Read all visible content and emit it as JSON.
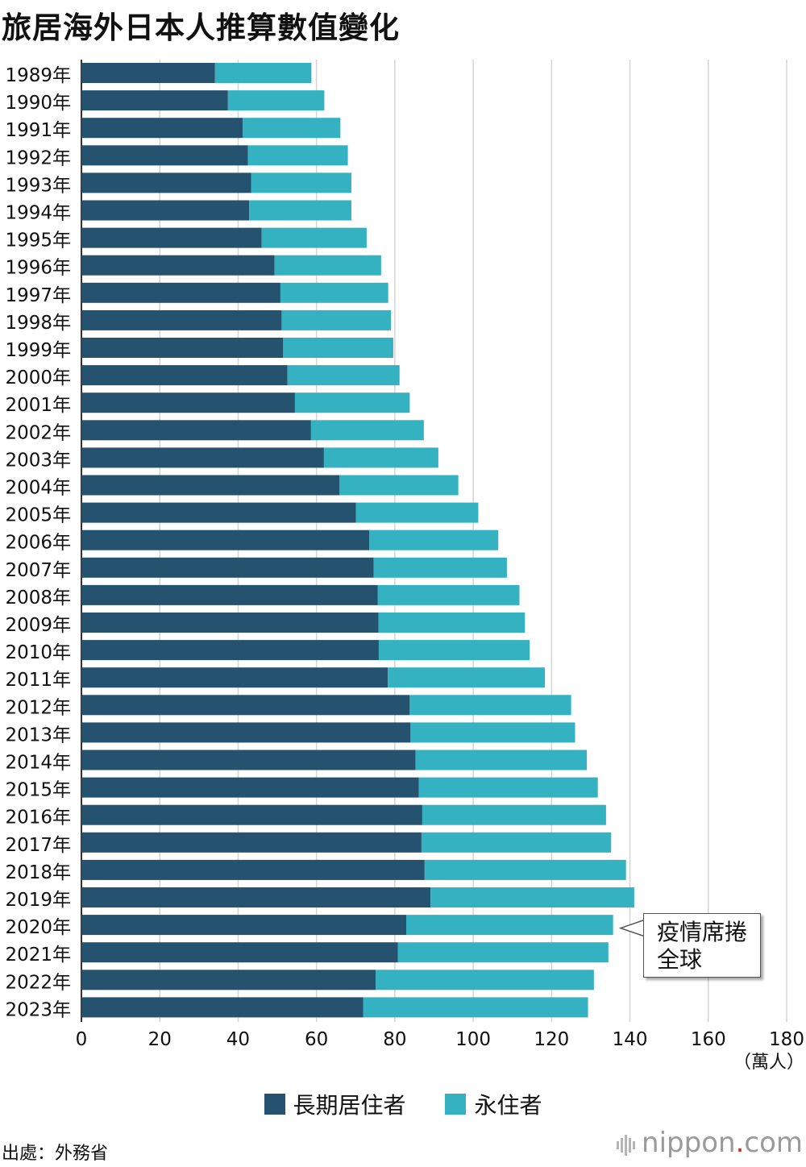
{
  "title": "旅居海外日本人推算數值變化",
  "source": "出處：外務省",
  "brand": {
    "name": "nippon",
    "dot": ".",
    "suffix": "com"
  },
  "annotation": {
    "line1": "疫情席捲",
    "line2": "全球",
    "year": "2020年"
  },
  "colors": {
    "long_term": "#25526f",
    "permanent": "#35b2c1",
    "grid": "#d4d4d4",
    "axis": "#333333"
  },
  "chart_data": {
    "type": "bar",
    "orientation": "horizontal",
    "stacked": true,
    "title": "旅居海外日本人推算數值變化",
    "unit": "（萬人）",
    "xlim": [
      0,
      180
    ],
    "xticks": [
      0,
      20,
      40,
      60,
      80,
      100,
      120,
      140,
      160,
      180
    ],
    "grid": true,
    "legend_position": "bottom",
    "categories": [
      "1989年",
      "1990年",
      "1991年",
      "1992年",
      "1993年",
      "1994年",
      "1995年",
      "1996年",
      "1997年",
      "1998年",
      "1999年",
      "2000年",
      "2001年",
      "2002年",
      "2003年",
      "2004年",
      "2005年",
      "2006年",
      "2007年",
      "2008年",
      "2009年",
      "2010年",
      "2011年",
      "2012年",
      "2013年",
      "2014年",
      "2015年",
      "2016年",
      "2017年",
      "2018年",
      "2019年",
      "2020年",
      "2021年",
      "2022年",
      "2023年"
    ],
    "series": [
      {
        "name": "長期居住者",
        "values": [
          34.1,
          37.4,
          41.2,
          42.5,
          43.3,
          42.8,
          46.0,
          49.3,
          50.8,
          51.1,
          51.5,
          52.6,
          54.5,
          58.6,
          61.9,
          65.9,
          70.1,
          73.5,
          74.6,
          75.6,
          75.8,
          75.9,
          78.2,
          83.8,
          84.0,
          85.3,
          86.1,
          87.0,
          86.8,
          87.6,
          89.1,
          82.9,
          80.8,
          75.1,
          71.9
        ]
      },
      {
        "name": "永住者",
        "values": [
          24.6,
          24.6,
          24.9,
          25.5,
          25.6,
          26.1,
          26.8,
          27.2,
          27.5,
          27.9,
          28.1,
          28.6,
          29.3,
          28.8,
          29.2,
          30.3,
          31.2,
          32.9,
          34.0,
          36.2,
          37.4,
          38.5,
          40.1,
          41.2,
          42.0,
          43.7,
          45.7,
          46.9,
          48.4,
          51.4,
          52.0,
          52.8,
          53.7,
          55.7,
          57.4
        ]
      }
    ]
  }
}
